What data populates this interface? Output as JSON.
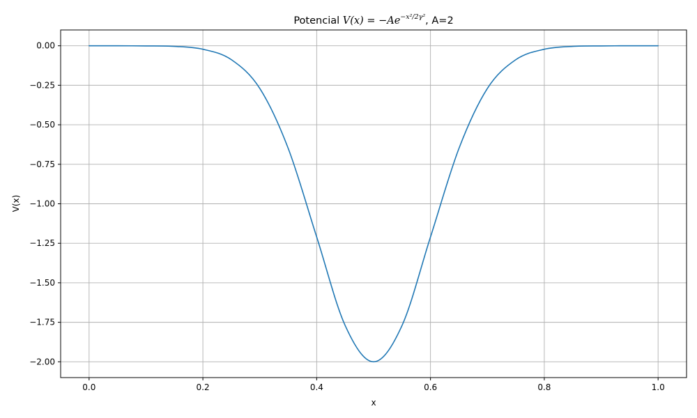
{
  "chart_data": {
    "type": "line",
    "title": {
      "prefix": "Potencial ",
      "formula": "V(x) = −Ae",
      "exponent": "−x²/2γ²",
      "suffix": ", A=2"
    },
    "xlabel": "x",
    "ylabel": "V(x)",
    "xlim": [
      -0.05,
      1.05
    ],
    "ylim": [
      -2.1,
      0.1
    ],
    "xticks": [
      0.0,
      0.2,
      0.4,
      0.6,
      0.8,
      1.0
    ],
    "xtick_labels": [
      "0.0",
      "0.2",
      "0.4",
      "0.6",
      "0.8",
      "1.0"
    ],
    "yticks": [
      0.0,
      -0.25,
      -0.5,
      -0.75,
      -1.0,
      -1.25,
      -1.5,
      -1.75,
      -2.0
    ],
    "ytick_labels": [
      "0.00",
      "−0.25",
      "−0.50",
      "−0.75",
      "−1.00",
      "−1.25",
      "−1.50",
      "−1.75",
      "−2.00"
    ],
    "grid": true,
    "series": [
      {
        "color": "#1f77b4",
        "x": [
          0.0,
          0.05,
          0.1,
          0.15,
          0.2,
          0.25,
          0.3,
          0.35,
          0.4,
          0.45,
          0.5,
          0.55,
          0.6,
          0.65,
          0.7,
          0.75,
          0.8,
          0.85,
          0.9,
          0.95,
          1.0
        ],
        "y": [
          0.0,
          0.0,
          -0.001,
          -0.004,
          -0.022,
          -0.088,
          -0.27,
          -0.65,
          -1.21,
          -1.77,
          -2.0,
          -1.77,
          -1.21,
          -0.65,
          -0.27,
          -0.088,
          -0.022,
          -0.004,
          -0.001,
          0.0,
          0.0
        ]
      }
    ]
  }
}
